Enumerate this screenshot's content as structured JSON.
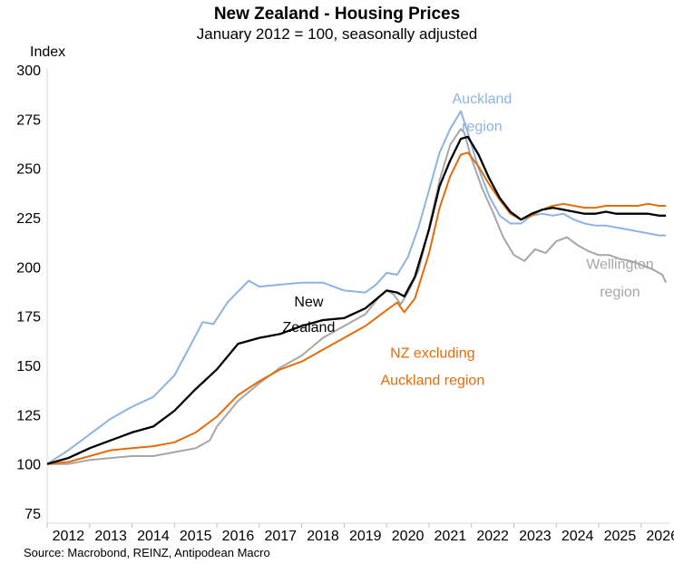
{
  "chart_data": {
    "type": "line",
    "title": "New Zealand - Housing Prices",
    "subtitle": "January 2012 = 100, seasonally adjusted",
    "ylabel": "Index",
    "xlabel": "",
    "source": "Source: Macrobond, REINZ, Antipodean Macro",
    "ylim": [
      75,
      300
    ],
    "yticks": [
      75,
      100,
      125,
      150,
      175,
      200,
      225,
      250,
      275,
      300
    ],
    "xlim": [
      "2012-01",
      "2026-09"
    ],
    "xtick_labels": [
      "2012",
      "2013",
      "2014",
      "2015",
      "2016",
      "2017",
      "2018",
      "2019",
      "2020",
      "2021",
      "2022",
      "2023",
      "2024",
      "2025",
      "2026"
    ],
    "grid": false,
    "series": [
      {
        "name": "Wellington region",
        "color": "#a6a6a6",
        "points": [
          [
            "2012-01",
            100
          ],
          [
            "2012-07",
            100
          ],
          [
            "2013-01",
            102
          ],
          [
            "2013-07",
            103
          ],
          [
            "2014-01",
            104
          ],
          [
            "2014-07",
            104
          ],
          [
            "2015-01",
            106
          ],
          [
            "2015-07",
            108
          ],
          [
            "2015-11",
            112
          ],
          [
            "2016-01",
            119
          ],
          [
            "2016-07",
            132
          ],
          [
            "2017-01",
            141
          ],
          [
            "2017-07",
            149
          ],
          [
            "2018-01",
            155
          ],
          [
            "2018-07",
            164
          ],
          [
            "2019-01",
            170
          ],
          [
            "2019-07",
            176
          ],
          [
            "2019-11",
            185
          ],
          [
            "2020-01",
            188
          ],
          [
            "2020-03",
            186
          ],
          [
            "2020-05",
            181
          ],
          [
            "2020-07",
            187
          ],
          [
            "2020-10",
            198
          ],
          [
            "2021-01",
            220
          ],
          [
            "2021-04",
            244
          ],
          [
            "2021-07",
            262
          ],
          [
            "2021-10",
            270
          ],
          [
            "2021-11",
            268
          ],
          [
            "2022-01",
            255
          ],
          [
            "2022-04",
            240
          ],
          [
            "2022-07",
            228
          ],
          [
            "2022-10",
            215
          ],
          [
            "2023-01",
            206
          ],
          [
            "2023-04",
            203
          ],
          [
            "2023-07",
            209
          ],
          [
            "2023-10",
            207
          ],
          [
            "2024-01",
            213
          ],
          [
            "2024-04",
            215
          ],
          [
            "2024-07",
            211
          ],
          [
            "2024-10",
            208
          ],
          [
            "2025-01",
            206
          ],
          [
            "2025-04",
            206
          ],
          [
            "2025-07",
            204
          ],
          [
            "2025-10",
            203
          ],
          [
            "2026-01",
            201
          ],
          [
            "2026-04",
            199
          ],
          [
            "2026-07",
            196
          ],
          [
            "2026-08",
            192
          ]
        ]
      },
      {
        "name": "Auckland region",
        "color": "#8db3e2",
        "points": [
          [
            "2012-01",
            100
          ],
          [
            "2012-07",
            107
          ],
          [
            "2013-01",
            115
          ],
          [
            "2013-07",
            123
          ],
          [
            "2014-01",
            129
          ],
          [
            "2014-07",
            134
          ],
          [
            "2015-01",
            145
          ],
          [
            "2015-04",
            155
          ],
          [
            "2015-09",
            172
          ],
          [
            "2015-12",
            171
          ],
          [
            "2016-04",
            182
          ],
          [
            "2016-10",
            193
          ],
          [
            "2017-01",
            190
          ],
          [
            "2017-07",
            191
          ],
          [
            "2018-01",
            192
          ],
          [
            "2018-07",
            192
          ],
          [
            "2019-01",
            188
          ],
          [
            "2019-07",
            187
          ],
          [
            "2019-10",
            191
          ],
          [
            "2020-01",
            197
          ],
          [
            "2020-04",
            196
          ],
          [
            "2020-07",
            205
          ],
          [
            "2020-10",
            220
          ],
          [
            "2021-01",
            239
          ],
          [
            "2021-04",
            258
          ],
          [
            "2021-07",
            270
          ],
          [
            "2021-10",
            279
          ],
          [
            "2021-12",
            268
          ],
          [
            "2022-03",
            250
          ],
          [
            "2022-06",
            236
          ],
          [
            "2022-09",
            226
          ],
          [
            "2022-12",
            222
          ],
          [
            "2023-03",
            222
          ],
          [
            "2023-06",
            226
          ],
          [
            "2023-09",
            227
          ],
          [
            "2023-12",
            226
          ],
          [
            "2024-03",
            227
          ],
          [
            "2024-06",
            224
          ],
          [
            "2024-09",
            222
          ],
          [
            "2024-12",
            221
          ],
          [
            "2025-03",
            221
          ],
          [
            "2025-06",
            220
          ],
          [
            "2025-09",
            219
          ],
          [
            "2025-12",
            218
          ],
          [
            "2026-03",
            217
          ],
          [
            "2026-06",
            216
          ],
          [
            "2026-08",
            216
          ]
        ]
      },
      {
        "name": "NZ excluding Auckland region",
        "color": "#e46c0a",
        "points": [
          [
            "2012-01",
            100
          ],
          [
            "2012-07",
            101
          ],
          [
            "2013-01",
            104
          ],
          [
            "2013-07",
            107
          ],
          [
            "2014-01",
            108
          ],
          [
            "2014-07",
            109
          ],
          [
            "2015-01",
            111
          ],
          [
            "2015-07",
            116
          ],
          [
            "2016-01",
            124
          ],
          [
            "2016-07",
            135
          ],
          [
            "2017-01",
            142
          ],
          [
            "2017-07",
            148
          ],
          [
            "2018-01",
            152
          ],
          [
            "2018-07",
            158
          ],
          [
            "2019-01",
            164
          ],
          [
            "2019-07",
            170
          ],
          [
            "2020-01",
            178
          ],
          [
            "2020-04",
            182
          ],
          [
            "2020-06",
            177
          ],
          [
            "2020-09",
            184
          ],
          [
            "2021-01",
            207
          ],
          [
            "2021-04",
            230
          ],
          [
            "2021-07",
            246
          ],
          [
            "2021-10",
            257
          ],
          [
            "2021-12",
            258
          ],
          [
            "2022-03",
            251
          ],
          [
            "2022-06",
            242
          ],
          [
            "2022-09",
            234
          ],
          [
            "2022-12",
            227
          ],
          [
            "2023-03",
            224
          ],
          [
            "2023-06",
            226
          ],
          [
            "2023-09",
            229
          ],
          [
            "2023-12",
            231
          ],
          [
            "2024-03",
            232
          ],
          [
            "2024-06",
            231
          ],
          [
            "2024-09",
            230
          ],
          [
            "2024-12",
            230
          ],
          [
            "2025-03",
            231
          ],
          [
            "2025-06",
            231
          ],
          [
            "2025-09",
            231
          ],
          [
            "2025-12",
            231
          ],
          [
            "2026-03",
            232
          ],
          [
            "2026-06",
            231
          ],
          [
            "2026-08",
            231
          ]
        ]
      },
      {
        "name": "New Zealand",
        "color": "#000000",
        "points": [
          [
            "2012-01",
            100
          ],
          [
            "2012-07",
            103
          ],
          [
            "2013-01",
            108
          ],
          [
            "2013-07",
            112
          ],
          [
            "2014-01",
            116
          ],
          [
            "2014-07",
            119
          ],
          [
            "2015-01",
            127
          ],
          [
            "2015-07",
            138
          ],
          [
            "2016-01",
            148
          ],
          [
            "2016-07",
            161
          ],
          [
            "2017-01",
            164
          ],
          [
            "2017-07",
            166
          ],
          [
            "2018-01",
            170
          ],
          [
            "2018-07",
            173
          ],
          [
            "2019-01",
            174
          ],
          [
            "2019-07",
            179
          ],
          [
            "2020-01",
            188
          ],
          [
            "2020-04",
            187
          ],
          [
            "2020-06",
            185
          ],
          [
            "2020-09",
            195
          ],
          [
            "2021-01",
            219
          ],
          [
            "2021-04",
            241
          ],
          [
            "2021-07",
            254
          ],
          [
            "2021-10",
            265
          ],
          [
            "2021-12",
            266
          ],
          [
            "2022-03",
            257
          ],
          [
            "2022-06",
            245
          ],
          [
            "2022-09",
            235
          ],
          [
            "2022-12",
            228
          ],
          [
            "2023-03",
            224
          ],
          [
            "2023-06",
            227
          ],
          [
            "2023-09",
            229
          ],
          [
            "2023-12",
            230
          ],
          [
            "2024-03",
            229
          ],
          [
            "2024-06",
            228
          ],
          [
            "2024-09",
            227
          ],
          [
            "2024-12",
            227
          ],
          [
            "2025-03",
            228
          ],
          [
            "2025-06",
            227
          ],
          [
            "2025-09",
            227
          ],
          [
            "2025-12",
            227
          ],
          [
            "2026-03",
            227
          ],
          [
            "2026-06",
            226
          ],
          [
            "2026-08",
            226
          ]
        ]
      }
    ],
    "annotations": [
      {
        "lines": [
          "Auckland",
          "region"
        ],
        "color": "#8db3e2",
        "anchor_x": "2022-04",
        "anchor_y": [
          283,
          269
        ]
      },
      {
        "lines": [
          "Wellington",
          "region"
        ],
        "color": "#a6a6a6",
        "anchor_x": "2025-07",
        "anchor_y": [
          199,
          185
        ]
      },
      {
        "lines": [
          "New",
          "Zealand"
        ],
        "color": "#000000",
        "anchor_x": "2018-03",
        "anchor_y": [
          180,
          167
        ]
      },
      {
        "lines": [
          "NZ excluding",
          "Auckland region"
        ],
        "color": "#e46c0a",
        "anchor_x": "2021-02",
        "anchor_y": [
          154,
          140
        ]
      }
    ]
  }
}
